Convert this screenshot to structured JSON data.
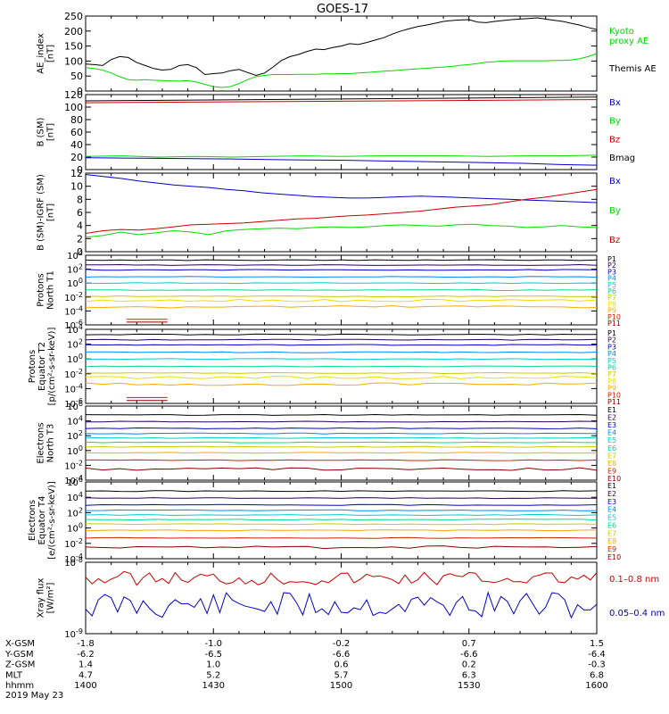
{
  "title": "GOES-17",
  "x_ticks": [
    "1400",
    "1430",
    "1500",
    "1530",
    "1600"
  ],
  "ephemeris": {
    "rows": [
      {
        "label": "X-GSM",
        "values": [
          "-1.8",
          "-1.0",
          "-0.2",
          "0.7",
          "1.5"
        ]
      },
      {
        "label": "Y-GSM",
        "values": [
          "-6.2",
          "-6.5",
          "-6.6",
          "-6.6",
          "-6.4"
        ]
      },
      {
        "label": "Z-GSM",
        "values": [
          "1.4",
          "1.0",
          "0.6",
          "0.2",
          "-0.3"
        ]
      },
      {
        "label": "MLT",
        "values": [
          "4.7",
          "5.2",
          "5.7",
          "6.3",
          "6.8"
        ]
      },
      {
        "label": "hhmm",
        "values": [
          "1400",
          "1430",
          "1500",
          "1530",
          "1600"
        ]
      }
    ],
    "date": "2019 May 23"
  },
  "chart_data": [
    {
      "type": "line",
      "ylabel": [
        "AE_index",
        "[nT]"
      ],
      "ylim": [
        0,
        250
      ],
      "yticks": [
        "0",
        "50",
        "100",
        "150",
        "200",
        "250"
      ],
      "x": [
        1400,
        1402,
        1404,
        1406,
        1408,
        1410,
        1412,
        1414,
        1416,
        1418,
        1420,
        1422,
        1424,
        1426,
        1428,
        1430,
        1432,
        1434,
        1436,
        1438,
        1440,
        1442,
        1444,
        1446,
        1448,
        1450,
        1452,
        1454,
        1456,
        1458,
        1500,
        1502,
        1504,
        1506,
        1508,
        1510,
        1512,
        1514,
        1516,
        1518,
        1520,
        1522,
        1524,
        1526,
        1528,
        1530,
        1532,
        1534,
        1536,
        1538,
        1540,
        1542,
        1544,
        1546,
        1548,
        1550,
        1552,
        1554,
        1556,
        1558,
        1600
      ],
      "series": [
        {
          "name": "Themis AE",
          "color": "#000000",
          "values": [
            90,
            88,
            85,
            105,
            115,
            112,
            95,
            85,
            75,
            70,
            72,
            85,
            88,
            78,
            55,
            58,
            60,
            68,
            72,
            62,
            52,
            60,
            80,
            102,
            115,
            122,
            132,
            140,
            138,
            145,
            150,
            158,
            155,
            162,
            170,
            178,
            190,
            200,
            208,
            215,
            220,
            226,
            232,
            235,
            237,
            238,
            230,
            228,
            232,
            235,
            238,
            240,
            242,
            244,
            240,
            236,
            232,
            226,
            220,
            212,
            205
          ]
        },
        {
          "name": "Kyoto proxy AE",
          "color": "#00dd00",
          "values": [
            78,
            75,
            70,
            60,
            48,
            38,
            36,
            38,
            36,
            35,
            34,
            33,
            35,
            30,
            22,
            15,
            12,
            15,
            25,
            38,
            48,
            52,
            55,
            55,
            55,
            56,
            56,
            56,
            57,
            57,
            58,
            58,
            60,
            62,
            64,
            66,
            68,
            70,
            72,
            74,
            76,
            78,
            80,
            82,
            86,
            88,
            92,
            96,
            98,
            100,
            101,
            101,
            101,
            101,
            101,
            102,
            102,
            104,
            108,
            115,
            125
          ]
        }
      ],
      "legend": [
        {
          "text": "Kyoto",
          "color": "#00dd00"
        },
        {
          "text": "proxy AE",
          "color": "#00dd00"
        },
        {
          "text": "Themis AE",
          "color": "#000000"
        }
      ]
    },
    {
      "type": "line",
      "ylabel": [
        "B (SM)",
        "[nT]"
      ],
      "ylim": [
        0,
        120
      ],
      "yticks": [
        "0",
        "20",
        "40",
        "60",
        "80",
        "100",
        "120"
      ],
      "series": [
        {
          "name": "Bmag",
          "color": "#000000",
          "values": [
            110,
            116
          ]
        },
        {
          "name": "Bz",
          "color": "#cc0000",
          "values": [
            107,
            112
          ]
        },
        {
          "name": "By",
          "color": "#00dd00",
          "values": [
            21,
            22,
            20,
            21,
            20,
            21,
            22,
            21,
            22,
            22,
            22,
            21,
            22,
            22,
            23
          ]
        },
        {
          "name": "Bx",
          "color": "#0000cc",
          "values": [
            19,
            18.5,
            18,
            17.5,
            17,
            16,
            15.5,
            15,
            14,
            13,
            12,
            11,
            10,
            8,
            7
          ]
        }
      ],
      "legend": [
        {
          "text": "Bx",
          "color": "#0000cc"
        },
        {
          "text": "By",
          "color": "#00dd00"
        },
        {
          "text": "Bz",
          "color": "#cc0000"
        },
        {
          "text": "Bmag",
          "color": "#000000"
        }
      ]
    },
    {
      "type": "line",
      "ylabel": [
        "B (SM)-IGRF (SM)",
        "[nT]"
      ],
      "ylim": [
        0,
        12
      ],
      "yticks": [
        "0",
        "2",
        "4",
        "6",
        "8",
        "10",
        "12"
      ],
      "series": [
        {
          "name": "Bx",
          "color": "#0000cc",
          "values": [
            11.8,
            11.5,
            11.2,
            10.8,
            10.5,
            10.2,
            10,
            9.8,
            9.5,
            9.3,
            9,
            8.8,
            8.6,
            8.4,
            8.3,
            8.2,
            8.2,
            8.3,
            8.4,
            8.5,
            8.4,
            8.3,
            8.2,
            8.1,
            8,
            7.9,
            7.8,
            7.7,
            7.6,
            7.5
          ]
        },
        {
          "name": "Bz",
          "color": "#cc0000",
          "values": [
            2.8,
            3.2,
            3.4,
            3.3,
            3.5,
            3.8,
            4.1,
            4.2,
            4.3,
            4.4,
            4.6,
            4.8,
            5,
            5.1,
            5.3,
            5.5,
            5.6,
            5.8,
            6,
            6.2,
            6.5,
            6.8,
            7,
            7.2,
            7.6,
            8,
            8.3,
            8.7,
            9.1,
            9.5
          ]
        },
        {
          "name": "By",
          "color": "#00dd00",
          "values": [
            2.2,
            2.5,
            3,
            2.6,
            2.9,
            3.2,
            3,
            2.6,
            3.2,
            3.4,
            3.5,
            3.6,
            3.5,
            3.7,
            3.8,
            3.7,
            3.8,
            4,
            4.1,
            4,
            3.9,
            4.1,
            4.2,
            4,
            3.9,
            3.7,
            3.8,
            4,
            3.8,
            3.7
          ]
        }
      ],
      "legend": [
        {
          "text": "Bx",
          "color": "#0000cc"
        },
        {
          "text": "By",
          "color": "#00dd00"
        },
        {
          "text": "Bz",
          "color": "#cc0000"
        }
      ]
    },
    {
      "type": "line",
      "log": true,
      "ylabel": [
        "Protons",
        "North T1"
      ],
      "yticks": [
        "10^-6",
        "10^-4",
        "10^-2",
        "10^0",
        "10^2",
        "10^4"
      ],
      "ylim_exp": [
        -6,
        4
      ],
      "channels": [
        {
          "name": "P1",
          "color": "#000000",
          "exp": 3.3
        },
        {
          "name": "P2",
          "color": "#2a0055",
          "exp": 2.6
        },
        {
          "name": "P3",
          "color": "#0000cc",
          "exp": 1.9
        },
        {
          "name": "P4",
          "color": "#0088ff",
          "exp": 0.9
        },
        {
          "name": "P5",
          "color": "#00cccc",
          "exp": 0.0
        },
        {
          "name": "P6",
          "color": "#00dd88",
          "exp": -1.0
        },
        {
          "name": "P7",
          "color": "#cccc00",
          "exp": -1.9
        },
        {
          "name": "P8",
          "color": "#eedd00",
          "exp": -2.5
        },
        {
          "name": "P9",
          "color": "#ffaa00",
          "exp": -3.4
        },
        {
          "name": "P10",
          "color": "#cc2200",
          "exp": -5.2
        },
        {
          "name": "P11",
          "color": "#880000",
          "exp": -5.6
        }
      ]
    },
    {
      "type": "line",
      "log": true,
      "ylabel": [
        "Protons",
        "Equator T2",
        "[p/(cm²-s-sr-keV)]"
      ],
      "yticks": [
        "10^-6",
        "10^-4",
        "10^-2",
        "10^0",
        "10^2",
        "10^4"
      ],
      "ylim_exp": [
        -6,
        4
      ],
      "channels": [
        {
          "name": "P1",
          "color": "#000000",
          "exp": 3.3
        },
        {
          "name": "P2",
          "color": "#2a0055",
          "exp": 2.6
        },
        {
          "name": "P3",
          "color": "#0000cc",
          "exp": 1.9
        },
        {
          "name": "P4",
          "color": "#0088ff",
          "exp": 0.9
        },
        {
          "name": "P5",
          "color": "#00cccc",
          "exp": 0.0
        },
        {
          "name": "P6",
          "color": "#00dd88",
          "exp": -1.0
        },
        {
          "name": "P7",
          "color": "#cccc00",
          "exp": -1.9
        },
        {
          "name": "P8",
          "color": "#eedd00",
          "exp": -2.5
        },
        {
          "name": "P9",
          "color": "#ffaa00",
          "exp": -3.4
        },
        {
          "name": "P10",
          "color": "#cc2200",
          "exp": -5.2
        },
        {
          "name": "P11",
          "color": "#880000",
          "exp": -5.6
        }
      ]
    },
    {
      "type": "line",
      "log": true,
      "ylabel": [
        "Electrons",
        "North T3"
      ],
      "yticks": [
        "10^-4",
        "10^-2",
        "10^0",
        "10^2",
        "10^4",
        "10^6"
      ],
      "ylim_exp": [
        -4,
        6
      ],
      "channels": [
        {
          "name": "E1",
          "color": "#000000",
          "exp": 4.8
        },
        {
          "name": "E2",
          "color": "#2a0055",
          "exp": 3.9
        },
        {
          "name": "E3",
          "color": "#0000cc",
          "exp": 3.0
        },
        {
          "name": "E4",
          "color": "#0088ff",
          "exp": 2.3
        },
        {
          "name": "E5",
          "color": "#00cccc",
          "exp": 1.7
        },
        {
          "name": "E6",
          "color": "#00dd88",
          "exp": 1.1
        },
        {
          "name": "E7",
          "color": "#cccc00",
          "exp": 0.5
        },
        {
          "name": "E8",
          "color": "#ffaa00",
          "exp": -0.3
        },
        {
          "name": "E9",
          "color": "#cc2200",
          "exp": -1.3
        },
        {
          "name": "E10",
          "color": "#880000",
          "exp": -2.5
        }
      ]
    },
    {
      "type": "line",
      "log": true,
      "ylabel": [
        "Electrons",
        "Equator T4",
        "[e/(cm²-s-sr-keV)]"
      ],
      "yticks": [
        "10^-4",
        "10^-2",
        "10^0",
        "10^2",
        "10^4",
        "10^6"
      ],
      "ylim_exp": [
        -4,
        6
      ],
      "channels": [
        {
          "name": "E1",
          "color": "#000000",
          "exp": 4.8
        },
        {
          "name": "E2",
          "color": "#2a0055",
          "exp": 3.9
        },
        {
          "name": "E3",
          "color": "#0000cc",
          "exp": 3.0
        },
        {
          "name": "E4",
          "color": "#0088ff",
          "exp": 2.3
        },
        {
          "name": "E5",
          "color": "#00cccc",
          "exp": 1.7
        },
        {
          "name": "E6",
          "color": "#00dd88",
          "exp": 1.1
        },
        {
          "name": "E7",
          "color": "#cccc00",
          "exp": 0.5
        },
        {
          "name": "E8",
          "color": "#ffaa00",
          "exp": -0.3
        },
        {
          "name": "E9",
          "color": "#cc2200",
          "exp": -1.3
        },
        {
          "name": "E10",
          "color": "#880000",
          "exp": -2.5
        }
      ]
    },
    {
      "type": "line",
      "log": true,
      "ylabel": [
        "Xray flux",
        "[W/m²]"
      ],
      "yticks": [
        "10^-9",
        "10^-8"
      ],
      "ylim_exp": [
        -9,
        -8
      ],
      "series": [
        {
          "name": "0.1–0.8 nm",
          "color": "#cc0000"
        },
        {
          "name": "0.05–0.4 nm",
          "color": "#0000cc"
        }
      ],
      "legend": [
        {
          "text": "0.1–0.8 nm",
          "color": "#cc0000"
        },
        {
          "text": "0.05–0.4 nm",
          "color": "#0000cc"
        }
      ]
    }
  ]
}
